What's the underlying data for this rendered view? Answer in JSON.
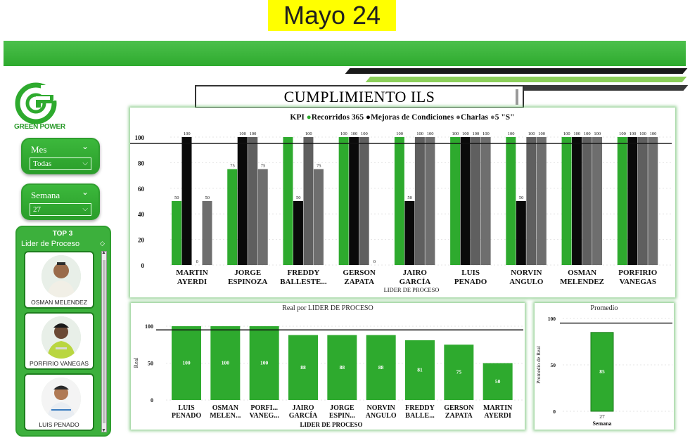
{
  "caption": "Mayo 24",
  "logo": {
    "text": "GREEN POWER"
  },
  "title": "CUMPLIMIENTO ILS",
  "slicers": {
    "mes": {
      "label": "Mes",
      "value": "Todas"
    },
    "semana": {
      "label": "Semana",
      "value": "27"
    }
  },
  "top3": {
    "title": "TOP 3",
    "subtitle": "Lider de Proceso",
    "people": [
      "OSMAN MELENDEZ",
      "PORFIRIO VANEGAS",
      "LUIS PENADO"
    ]
  },
  "colors": {
    "green": "#2eaa2e",
    "black": "#0a0a0a",
    "gray": "#5f5f5f",
    "darkgray": "#6e6e6e"
  },
  "chart_data": [
    {
      "type": "bar",
      "legend_title": "KPI",
      "legend": [
        "Recorridos 365",
        "Mejoras de Condiciones",
        "Charlas",
        "5 \"S\""
      ],
      "legend_placement": "top",
      "xlabel": "LIDER DE PROCESO",
      "ylabel": "",
      "ylim": [
        0,
        100
      ],
      "yticks": [
        0,
        20,
        40,
        60,
        80,
        100
      ],
      "reference_line": 95,
      "categories": [
        [
          "MARTIN",
          "AYERDI"
        ],
        [
          "JORGE",
          "ESPINOZA"
        ],
        [
          "FREDDY",
          "BALLESTE..."
        ],
        [
          "GERSON",
          "ZAPATA"
        ],
        [
          "JAIRO",
          "GARCÍA"
        ],
        [
          "LUIS",
          "PENADO"
        ],
        [
          "NORVIN",
          "ANGULO"
        ],
        [
          "OSMAN",
          "MELENDEZ"
        ],
        [
          "PORFIRIO",
          "VANEGAS"
        ]
      ],
      "series": [
        {
          "name": "Recorridos 365",
          "color": "#2eaa2e",
          "values": [
            50,
            75,
            100,
            100,
            100,
            100,
            100,
            100,
            100
          ]
        },
        {
          "name": "Mejoras de Condiciones",
          "color": "#0a0a0a",
          "values": [
            100,
            100,
            50,
            100,
            50,
            100,
            50,
            100,
            100
          ]
        },
        {
          "name": "Charlas",
          "color": "#5f5f5f",
          "values": [
            0,
            100,
            100,
            100,
            100,
            100,
            100,
            100,
            100
          ]
        },
        {
          "name": "5 \"S\"",
          "color": "#6e6e6e",
          "values": [
            50,
            75,
            75,
            0,
            100,
            100,
            100,
            100,
            100
          ]
        }
      ],
      "labels": [
        [
          "50",
          "100",
          "0",
          "50"
        ],
        [
          "75",
          "100",
          "100",
          "75"
        ],
        [
          "",
          "50",
          "100",
          "75"
        ],
        [
          "100",
          "100",
          "100",
          "0"
        ],
        [
          "100",
          "50",
          "100",
          "100"
        ],
        [
          "100",
          "100",
          "100",
          "100"
        ],
        [
          "100",
          "50",
          "100",
          "100"
        ],
        [
          "100",
          "100",
          "100",
          "100"
        ],
        [
          "100",
          "100",
          "100",
          "100"
        ]
      ]
    },
    {
      "type": "bar",
      "title": "Real por LIDER DE PROCESO",
      "xlabel": "LIDER DE PROCESO",
      "ylabel": "Real",
      "ylim": [
        0,
        100
      ],
      "yticks": [
        0,
        50,
        100
      ],
      "reference_line": 95,
      "categories": [
        [
          "LUIS",
          "PENADO"
        ],
        [
          "OSMAN",
          "MELEN..."
        ],
        [
          "PORFI...",
          "VANEG..."
        ],
        [
          "JAIRO",
          "GARCÍA"
        ],
        [
          "JORGE",
          "ESPIN..."
        ],
        [
          "NORVIN",
          "ANGULO"
        ],
        [
          "FREDDY",
          "BALLE..."
        ],
        [
          "GERSON",
          "ZAPATA"
        ],
        [
          "MARTIN",
          "AYERDI"
        ]
      ],
      "values": [
        100,
        100,
        100,
        88,
        88,
        88,
        81,
        75,
        50
      ],
      "value_labels": [
        "100",
        "100",
        "100",
        "88",
        "88",
        "88",
        "81",
        "75",
        "50"
      ]
    },
    {
      "type": "bar",
      "title": "Promedio",
      "xlabel": "Semana",
      "ylabel": "Promedio de Real",
      "ylim": [
        0,
        100
      ],
      "yticks": [
        0,
        50,
        100
      ],
      "reference_line": 95,
      "categories": [
        "27"
      ],
      "values": [
        85
      ],
      "value_labels": [
        "85"
      ]
    }
  ]
}
